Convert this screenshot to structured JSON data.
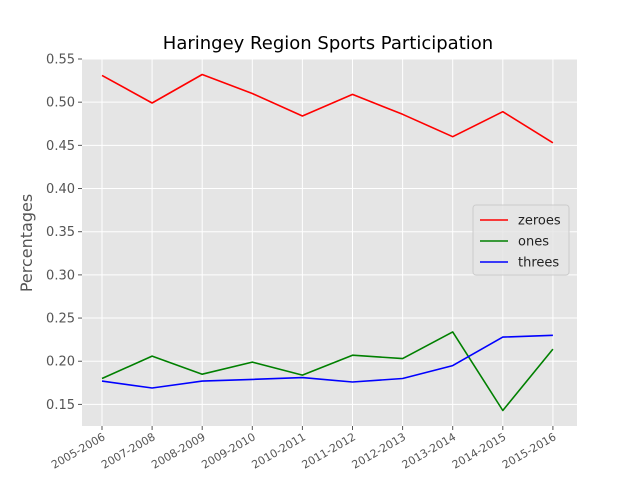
{
  "chart_data": {
    "type": "line",
    "title": "Haringey Region Sports Participation",
    "xlabel": "",
    "ylabel": "Percentages",
    "categories": [
      "2005-2006",
      "2007-2008",
      "2008-2009",
      "2009-2010",
      "2010-2011",
      "2011-2012",
      "2012-2013",
      "2013-2014",
      "2014-2015",
      "2015-2016"
    ],
    "ylim": [
      0.125,
      0.55
    ],
    "yticks": [
      "0.15",
      "0.20",
      "0.25",
      "0.30",
      "0.35",
      "0.40",
      "0.45",
      "0.50",
      "0.55"
    ],
    "grid": true,
    "legend_position": "center-right",
    "series": [
      {
        "name": "zeroes",
        "color": "#ff0000",
        "values": [
          0.531,
          0.499,
          0.532,
          0.51,
          0.484,
          0.509,
          0.486,
          0.46,
          0.489,
          0.453
        ]
      },
      {
        "name": "ones",
        "color": "#008000",
        "values": [
          0.18,
          0.206,
          0.185,
          0.199,
          0.184,
          0.207,
          0.203,
          0.234,
          0.143,
          0.214
        ]
      },
      {
        "name": "threes",
        "color": "#0000ff",
        "values": [
          0.177,
          0.169,
          0.177,
          0.179,
          0.181,
          0.176,
          0.18,
          0.195,
          0.228,
          0.23
        ]
      }
    ]
  }
}
